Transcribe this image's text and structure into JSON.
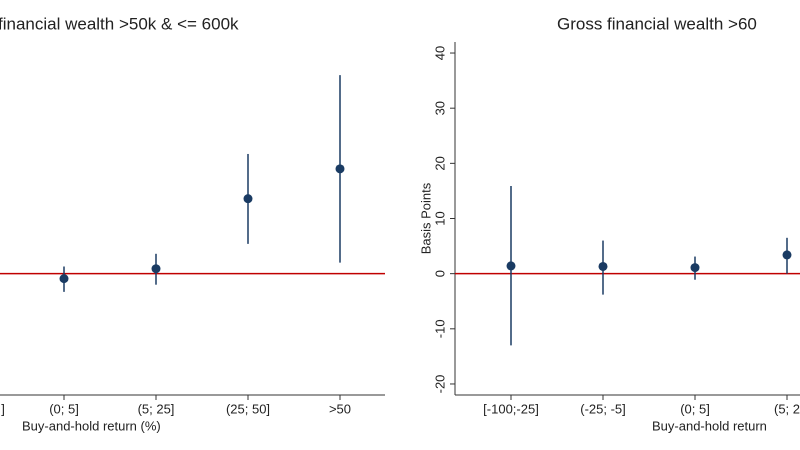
{
  "chart_data": [
    {
      "type": "errorbar",
      "title": "financial wealth >50k & <= 600k",
      "xlabel": "Buy-and-hold return (%)",
      "categories": [
        "]",
        "(0; 5]",
        "(5; 25]",
        "(25; 50]",
        ">50"
      ],
      "values": [
        null,
        -0.9,
        0.9,
        13.6,
        19.0
      ],
      "lower": [
        null,
        -3.3,
        -2.0,
        5.4,
        2.0
      ],
      "upper": [
        null,
        1.3,
        3.6,
        21.7,
        36.0
      ],
      "color": "#1a3b63",
      "ylim": [
        -22,
        42
      ],
      "hline": 0,
      "hline_color": "#c00000"
    },
    {
      "type": "errorbar",
      "title": "Gross financial wealth >60",
      "xlabel": "Buy-and-hold return",
      "ylabel": "Basis Points",
      "categories": [
        "[-100;-25]",
        "(-25; -5]",
        "(0; 5]",
        "(5; 2"
      ],
      "values": [
        1.4,
        1.3,
        1.1,
        3.4
      ],
      "lower": [
        -13.0,
        -3.8,
        -1.1,
        0.0
      ],
      "upper": [
        15.9,
        6.0,
        3.1,
        6.5
      ],
      "color": "#1a3b63",
      "ylim": [
        -22,
        42
      ],
      "yticks": [
        -20,
        -10,
        0,
        10,
        20,
        30,
        40
      ],
      "hline": 0,
      "hline_color": "#c00000"
    }
  ]
}
